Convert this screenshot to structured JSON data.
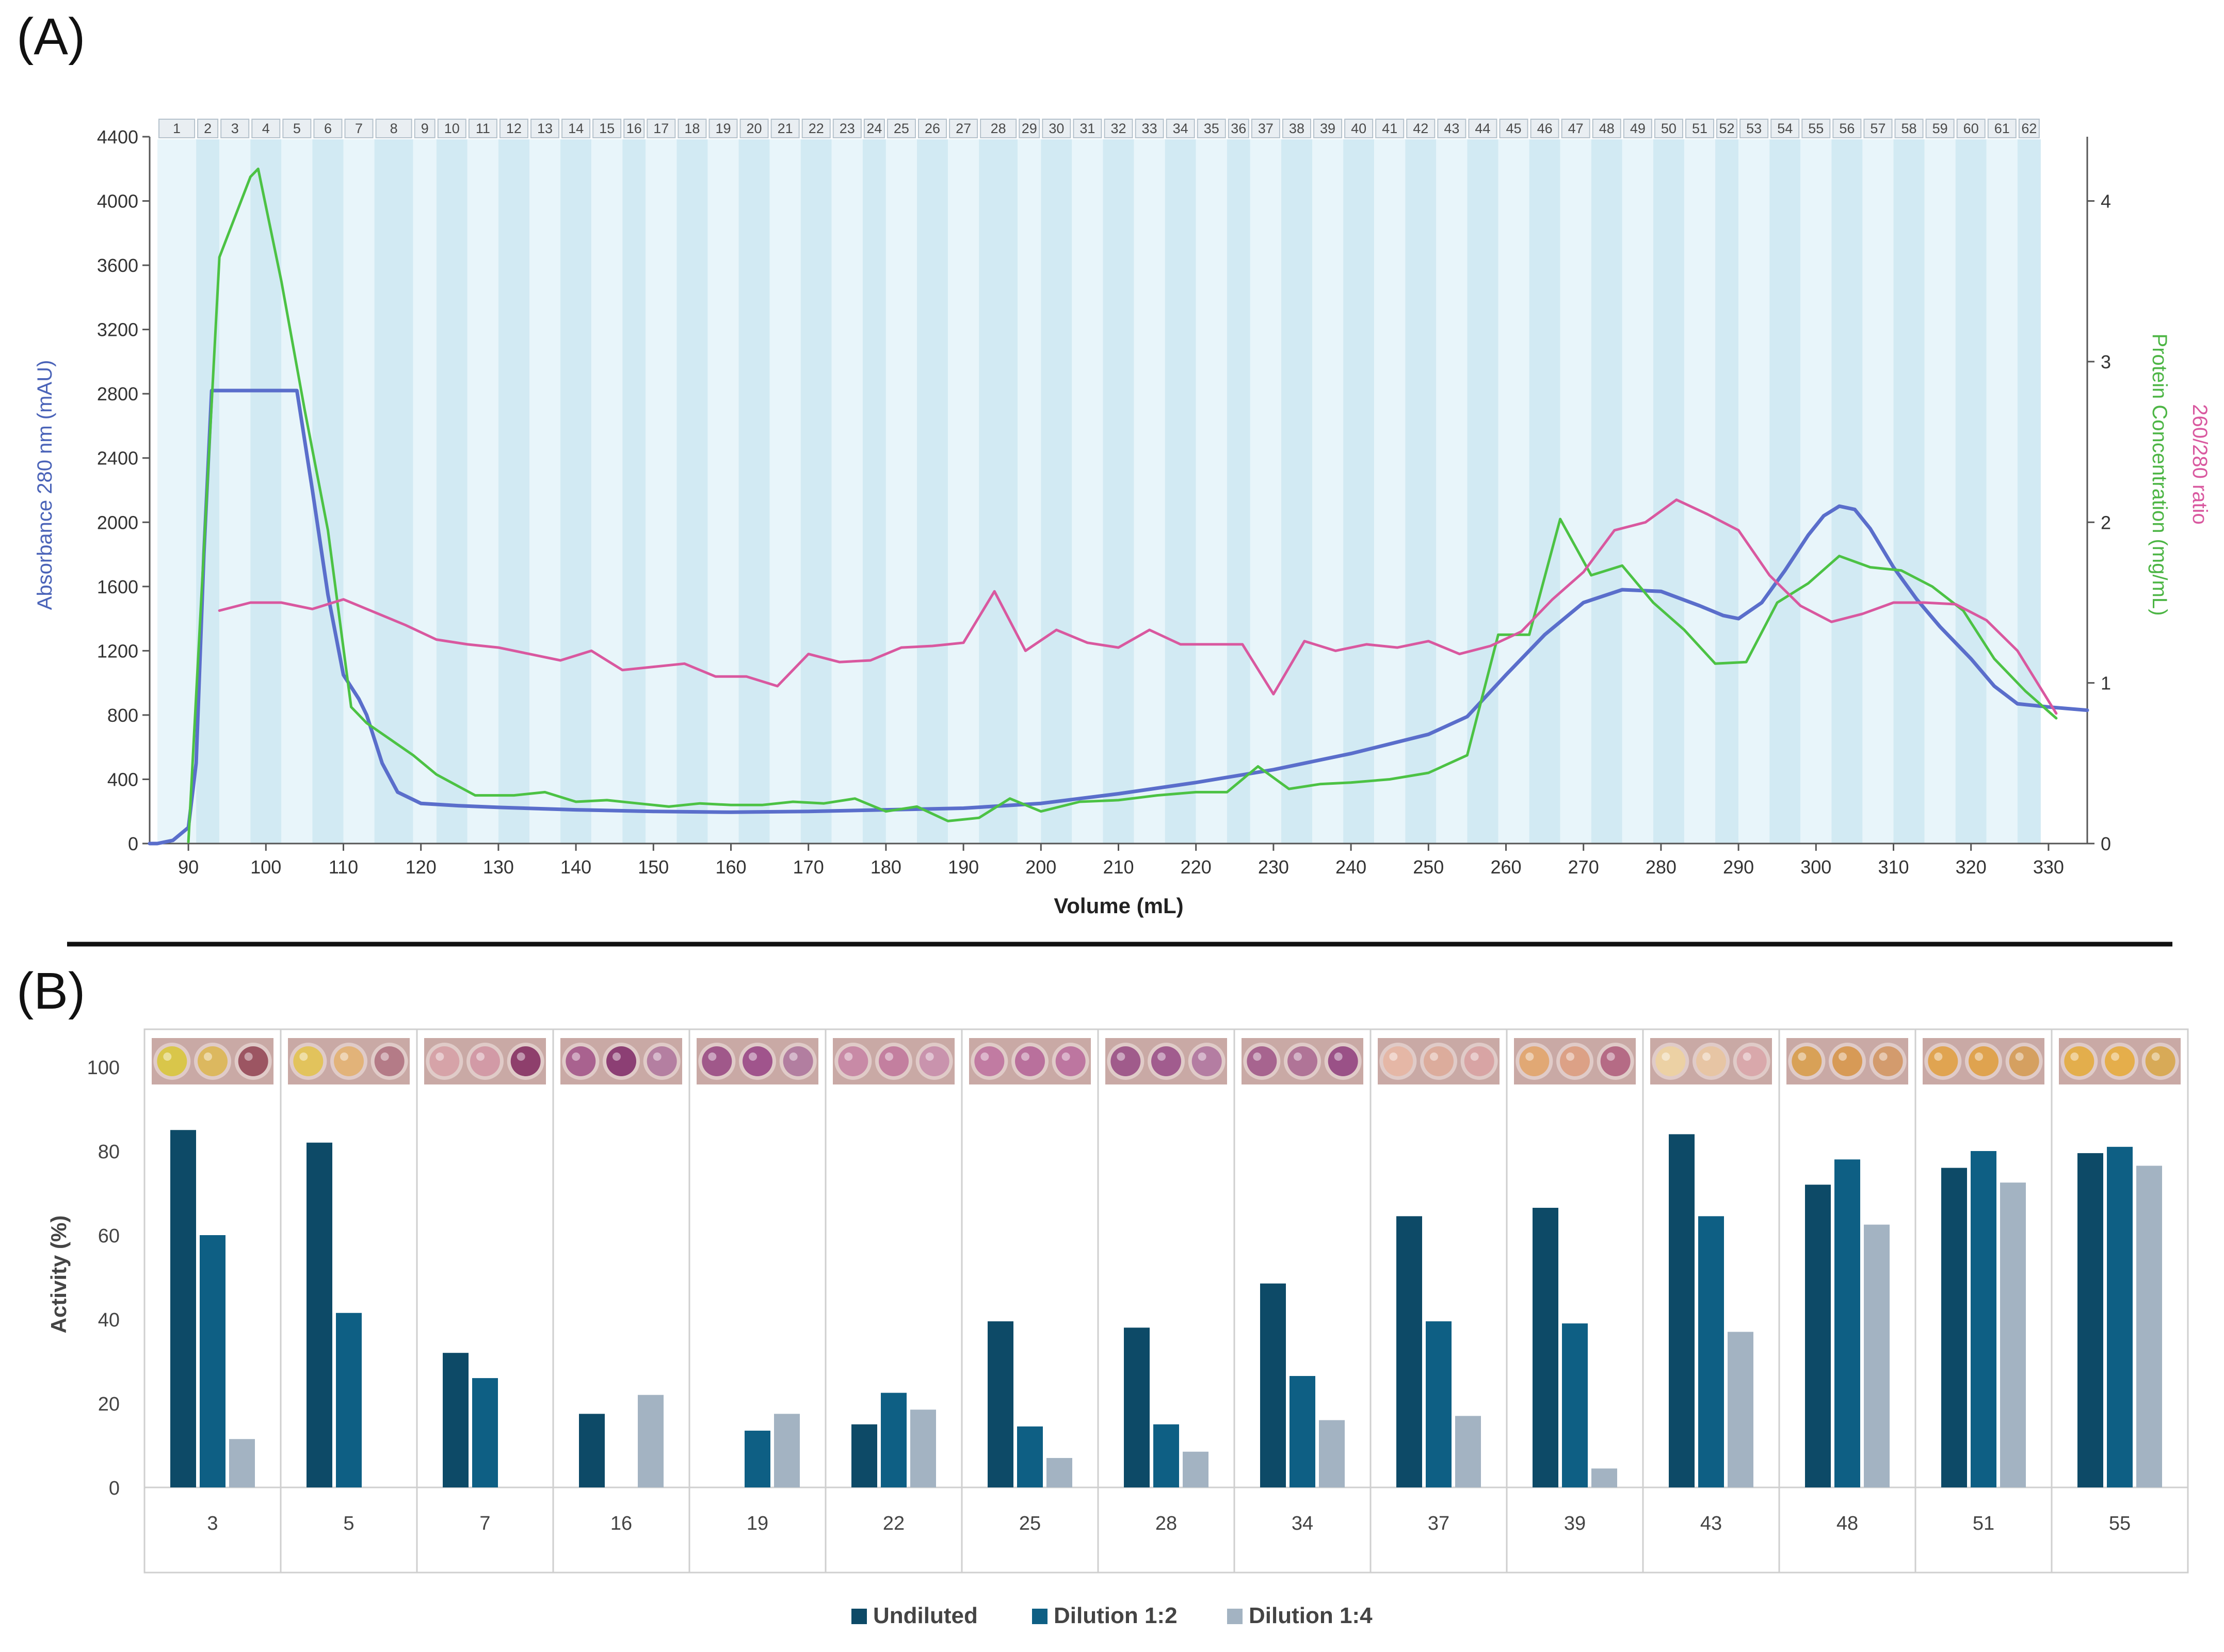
{
  "panel_a": {
    "label": "(A)",
    "fractions": [
      "1",
      "2",
      "3",
      "4",
      "5",
      "6",
      "7",
      "8",
      "9",
      "10",
      "11",
      "12",
      "13",
      "14",
      "15",
      "16",
      "17",
      "18",
      "19",
      "20",
      "21",
      "22",
      "23",
      "24",
      "25",
      "26",
      "27",
      "28",
      "29",
      "30",
      "31",
      "32",
      "33",
      "34",
      "35",
      "36",
      "37",
      "38",
      "39",
      "40",
      "41",
      "42",
      "43",
      "44",
      "45",
      "46",
      "47",
      "48",
      "49",
      "50",
      "51",
      "52",
      "53",
      "54",
      "55",
      "56",
      "57",
      "58",
      "59",
      "60",
      "61",
      "62"
    ],
    "fraction_edges": [
      86,
      91,
      94,
      98,
      102,
      106,
      110,
      114,
      119,
      122,
      126,
      130,
      134,
      138,
      142,
      146,
      149,
      153,
      157,
      161,
      165,
      169,
      173,
      177,
      180,
      184,
      188,
      192,
      197,
      200,
      204,
      208,
      212,
      216,
      220,
      224,
      227,
      231,
      235,
      239,
      243,
      247,
      251,
      255,
      259,
      263,
      267,
      271,
      275,
      279,
      283,
      287,
      290,
      294,
      298,
      302,
      306,
      310,
      314,
      318,
      322,
      326,
      329
    ],
    "colors": {
      "absorbance": "#5a6ecb",
      "protein": "#4cc244",
      "ratio": "#d9589f",
      "band_dark": "#d2eaf3",
      "band_light": "#e8f5fa",
      "header": "#e9eef2"
    }
  },
  "panel_b": {
    "label": "(B)",
    "colors": {
      "Undiluted": "#0d4a67",
      "Dilution 1:2": "#0e5f84",
      "Dilution 1:4": "#a3b3c2"
    }
  },
  "chart_data": [
    {
      "type": "line",
      "title": "",
      "xlabel": "Volume (mL)",
      "ylabel": "Absorbance 280 nm (mAU)",
      "ylabel_right": [
        "Protein Concentration (mg/mL)",
        "260/280 ratio"
      ],
      "xlim": [
        85,
        335
      ],
      "ylim": [
        0,
        4400
      ],
      "ylim_right": [
        0,
        4.4
      ],
      "x_ticks": [
        90,
        100,
        110,
        120,
        130,
        140,
        150,
        160,
        170,
        180,
        190,
        200,
        210,
        220,
        230,
        240,
        250,
        260,
        270,
        280,
        290,
        300,
        310,
        320,
        330
      ],
      "y_ticks": [
        0,
        400,
        800,
        1200,
        1600,
        2000,
        2400,
        2800,
        3200,
        3600,
        4000,
        4400
      ],
      "y_ticks_right": [
        0,
        1,
        2,
        3,
        4
      ],
      "grid": false,
      "series": [
        {
          "name": "Absorbance 280 nm (mAU)",
          "axis": "left",
          "color": "#5a6ecb",
          "x": [
            85,
            86,
            88,
            90,
            91,
            92,
            93,
            94,
            96,
            100,
            103,
            104,
            106,
            108,
            110,
            112,
            113,
            115,
            117,
            120,
            125,
            130,
            140,
            150,
            160,
            170,
            180,
            190,
            200,
            210,
            220,
            230,
            240,
            250,
            255,
            260,
            265,
            270,
            275,
            280,
            285,
            288,
            290,
            293,
            296,
            299,
            301,
            303,
            305,
            307,
            310,
            313,
            316,
            320,
            323,
            326,
            330,
            335
          ],
          "y": [
            0,
            0,
            20,
            100,
            500,
            1800,
            2820,
            2820,
            2820,
            2820,
            2820,
            2820,
            2200,
            1550,
            1050,
            900,
            800,
            500,
            320,
            250,
            235,
            225,
            210,
            200,
            195,
            200,
            210,
            220,
            250,
            310,
            380,
            460,
            560,
            680,
            790,
            1050,
            1300,
            1500,
            1580,
            1570,
            1480,
            1420,
            1400,
            1500,
            1700,
            1920,
            2040,
            2100,
            2080,
            1960,
            1720,
            1520,
            1350,
            1150,
            980,
            870,
            850,
            830
          ]
        },
        {
          "name": "Protein Concentration (mg/mL)",
          "axis": "right",
          "color": "#4cc244",
          "x": [
            90,
            94,
            98,
            99,
            102,
            105,
            108,
            111,
            113,
            116,
            119,
            122,
            127,
            132,
            136,
            140,
            144,
            148,
            152,
            156,
            160,
            164,
            168,
            172,
            176,
            180,
            184,
            188,
            192,
            196,
            200,
            205,
            210,
            215,
            220,
            224,
            228,
            232,
            236,
            240,
            245,
            250,
            255,
            259,
            263,
            267,
            271,
            275,
            279,
            283,
            287,
            291,
            295,
            299,
            303,
            307,
            311,
            315,
            319,
            323,
            327,
            331
          ],
          "y": [
            0.01,
            3.65,
            4.15,
            4.2,
            3.5,
            2.7,
            1.95,
            0.85,
            0.75,
            0.65,
            0.55,
            0.43,
            0.3,
            0.3,
            0.32,
            0.26,
            0.27,
            0.25,
            0.23,
            0.25,
            0.24,
            0.24,
            0.26,
            0.25,
            0.28,
            0.2,
            0.23,
            0.14,
            0.16,
            0.28,
            0.2,
            0.26,
            0.27,
            0.3,
            0.32,
            0.32,
            0.48,
            0.34,
            0.37,
            0.38,
            0.4,
            0.44,
            0.55,
            1.3,
            1.3,
            2.02,
            1.67,
            1.73,
            1.5,
            1.33,
            1.12,
            1.13,
            1.5,
            1.62,
            1.79,
            1.72,
            1.7,
            1.6,
            1.45,
            1.15,
            0.95,
            0.78
          ]
        },
        {
          "name": "260/280 ratio",
          "axis": "right",
          "color": "#d9589f",
          "x": [
            94,
            98,
            102,
            106,
            110,
            114,
            118,
            122,
            126,
            130,
            134,
            138,
            142,
            146,
            150,
            154,
            158,
            162,
            166,
            170,
            174,
            178,
            182,
            186,
            190,
            194,
            198,
            202,
            206,
            210,
            214,
            218,
            222,
            226,
            230,
            234,
            238,
            242,
            246,
            250,
            254,
            258,
            262,
            266,
            270,
            274,
            278,
            282,
            286,
            290,
            294,
            298,
            302,
            306,
            310,
            314,
            318,
            322,
            326,
            331
          ],
          "y": [
            1.45,
            1.5,
            1.5,
            1.46,
            1.52,
            1.44,
            1.36,
            1.27,
            1.24,
            1.22,
            1.18,
            1.14,
            1.2,
            1.08,
            1.1,
            1.12,
            1.04,
            1.04,
            0.98,
            1.18,
            1.13,
            1.14,
            1.22,
            1.23,
            1.25,
            1.57,
            1.2,
            1.33,
            1.25,
            1.22,
            1.33,
            1.24,
            1.24,
            1.24,
            0.93,
            1.26,
            1.2,
            1.24,
            1.22,
            1.26,
            1.18,
            1.23,
            1.32,
            1.52,
            1.69,
            1.95,
            2.0,
            2.14,
            2.05,
            1.95,
            1.67,
            1.48,
            1.38,
            1.43,
            1.5,
            1.5,
            1.49,
            1.39,
            1.2,
            0.81
          ]
        }
      ]
    },
    {
      "type": "bar",
      "title": "",
      "xlabel": "",
      "ylabel": "Activity (%)",
      "ylim": [
        0,
        100
      ],
      "y_ticks": [
        0,
        20,
        40,
        60,
        80,
        100
      ],
      "grid": false,
      "legend": "bottom",
      "categories": [
        "3",
        "5",
        "7",
        "16",
        "19",
        "22",
        "25",
        "28",
        "34",
        "37",
        "39",
        "43",
        "48",
        "51",
        "55"
      ],
      "series": [
        {
          "name": "Undiluted",
          "values": [
            85,
            82,
            32,
            17.5,
            0,
            15,
            39.5,
            38,
            48.5,
            64.5,
            66.5,
            84,
            72,
            76,
            79.5
          ]
        },
        {
          "name": "Dilution 1:2",
          "values": [
            60,
            41.5,
            26,
            0,
            13.5,
            22.5,
            14.5,
            15,
            26.5,
            39.5,
            39,
            64.5,
            78,
            80,
            81
          ]
        },
        {
          "name": "Dilution 1:4",
          "values": [
            11.5,
            0,
            0,
            22,
            17.5,
            18.5,
            7,
            8.5,
            16,
            17,
            4.5,
            37,
            62.5,
            72.5,
            76.5
          ]
        }
      ],
      "well_photo_colors": [
        [
          "#d9c64a",
          "#dcb85f",
          "#9c5562"
        ],
        [
          "#e2c35c",
          "#e2b379",
          "#b47b87"
        ],
        [
          "#d6a3a8",
          "#d29aa6",
          "#8e3f6c"
        ],
        [
          "#a9628f",
          "#8c3f74",
          "#b47fa1"
        ],
        [
          "#a0588a",
          "#a0548c",
          "#b27ea0"
        ],
        [
          "#c88aa6",
          "#c37f9f",
          "#c993ad"
        ],
        [
          "#c17ba2",
          "#b9709c",
          "#bd76a0"
        ],
        [
          "#a05b8b",
          "#a15c8e",
          "#b47da2"
        ],
        [
          "#a7648f",
          "#b07497",
          "#9a5187"
        ],
        [
          "#e5b7a6",
          "#dcac9c",
          "#d8a4a4"
        ],
        [
          "#e1a874",
          "#dca186",
          "#b56b85"
        ],
        [
          "#ecd1a4",
          "#e7c5a4",
          "#d9a8ab"
        ],
        [
          "#d8a157",
          "#d79a56",
          "#d39b6d"
        ],
        [
          "#e0a451",
          "#dfa34f",
          "#d5a060"
        ],
        [
          "#e3ae4c",
          "#e5ae4b",
          "#d8aa57"
        ]
      ]
    }
  ]
}
